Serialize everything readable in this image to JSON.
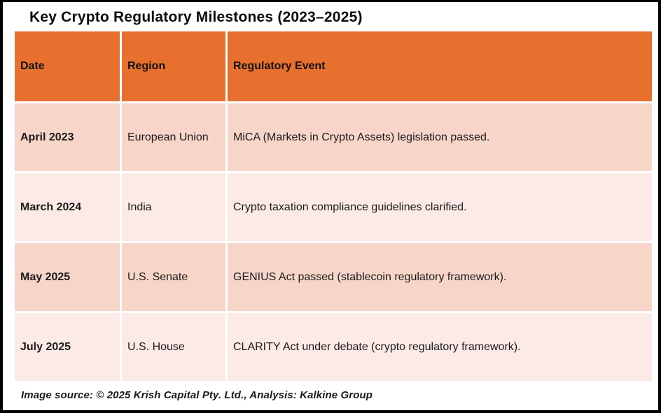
{
  "title": "Key Crypto Regulatory Milestones (2023–2025)",
  "colors": {
    "header_bg": "#E7702E",
    "row_odd_bg": "#F7D5C9",
    "row_even_bg": "#FBEAE6",
    "frame_border": "#000000",
    "text": "#1b1b1b"
  },
  "table": {
    "columns": [
      "Date",
      "Region",
      "Regulatory Event"
    ],
    "rows": [
      {
        "date": "April 2023",
        "region": "European Union",
        "event": "MiCA (Markets in Crypto Assets) legislation passed."
      },
      {
        "date": "March 2024",
        "region": "India",
        "event": "Crypto taxation compliance guidelines clarified."
      },
      {
        "date": "May 2025",
        "region": "U.S. Senate",
        "event": "GENIUS Act passed (stablecoin regulatory framework)."
      },
      {
        "date": "July 2025",
        "region": "U.S. House",
        "event": "CLARITY Act under debate (crypto regulatory framework)."
      }
    ]
  },
  "footer": {
    "source_text": "Image source: © 2025 Krish Capital Pty. Ltd., Analysis: Kalkine Group"
  },
  "chart_data": {
    "type": "table",
    "title": "Key Crypto Regulatory Milestones (2023–2025)",
    "columns": [
      "Date",
      "Region",
      "Regulatory Event"
    ],
    "rows": [
      [
        "April 2023",
        "European Union",
        "MiCA (Markets in Crypto Assets) legislation passed."
      ],
      [
        "March 2024",
        "India",
        "Crypto taxation compliance guidelines clarified."
      ],
      [
        "May 2025",
        "U.S. Senate",
        "GENIUS Act passed (stablecoin regulatory framework)."
      ],
      [
        "July 2025",
        "U.S. House",
        "CLARITY Act under debate (crypto regulatory framework)."
      ]
    ],
    "layout_hints": {
      "header_fill": "#E7702E",
      "row_banding": [
        "#F7D5C9",
        "#FBEAE6"
      ],
      "grid": "white cell gaps",
      "source_note": "Image source: © 2025 Krish Capital Pty. Ltd., Analysis: Kalkine Group"
    }
  }
}
